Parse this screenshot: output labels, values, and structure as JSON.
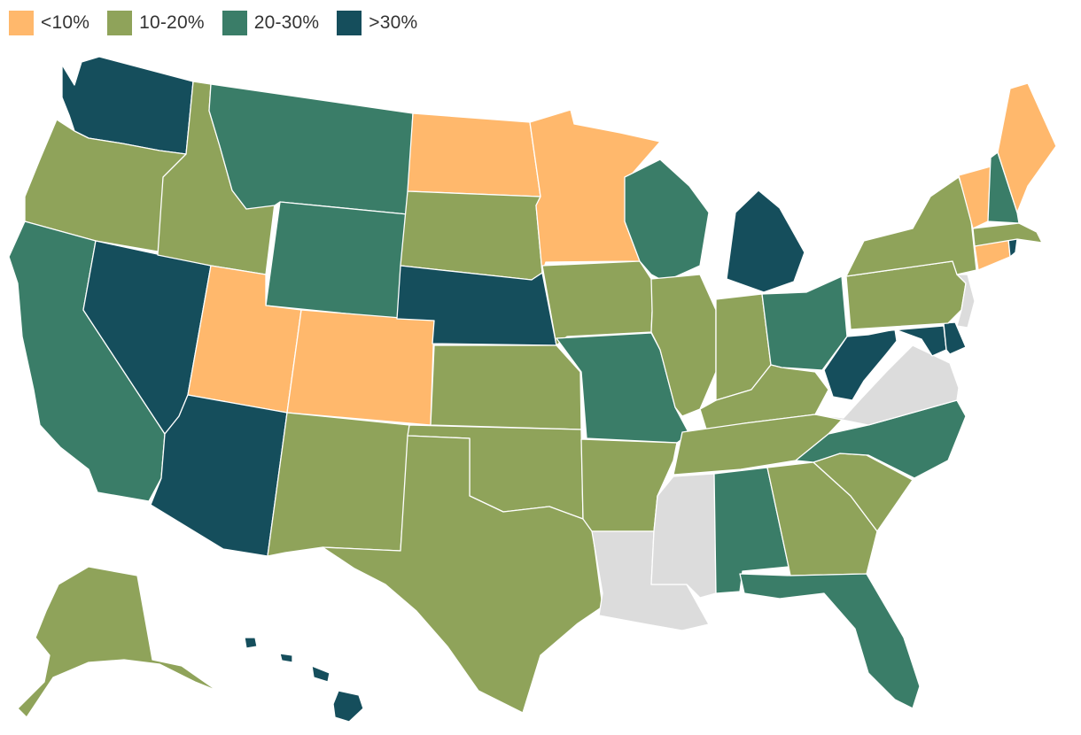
{
  "legend": {
    "items": [
      {
        "label": "<10%",
        "color": "#FFB86C"
      },
      {
        "label": "10-20%",
        "color": "#8FA35A"
      },
      {
        "label": "20-30%",
        "color": "#3A7D68"
      },
      {
        "label": ">30%",
        "color": "#154E5C"
      }
    ]
  },
  "no_data_color": "#DCDCDC",
  "states": [
    {
      "name": "WA",
      "category": ">30%"
    },
    {
      "name": "OR",
      "category": "10-20%"
    },
    {
      "name": "CA",
      "category": "20-30%"
    },
    {
      "name": "NV",
      "category": ">30%"
    },
    {
      "name": "ID",
      "category": "10-20%"
    },
    {
      "name": "MT",
      "category": "20-30%"
    },
    {
      "name": "WY",
      "category": "20-30%"
    },
    {
      "name": "UT",
      "category": "<10%"
    },
    {
      "name": "AZ",
      "category": ">30%"
    },
    {
      "name": "CO",
      "category": "<10%"
    },
    {
      "name": "NM",
      "category": "10-20%"
    },
    {
      "name": "ND",
      "category": "<10%"
    },
    {
      "name": "SD",
      "category": "10-20%"
    },
    {
      "name": "NE",
      "category": ">30%"
    },
    {
      "name": "KS",
      "category": "10-20%"
    },
    {
      "name": "OK",
      "category": "10-20%"
    },
    {
      "name": "TX",
      "category": "10-20%"
    },
    {
      "name": "MN",
      "category": "<10%"
    },
    {
      "name": "IA",
      "category": "10-20%"
    },
    {
      "name": "MO",
      "category": "20-30%"
    },
    {
      "name": "AR",
      "category": "10-20%"
    },
    {
      "name": "LA",
      "category": "no data"
    },
    {
      "name": "WI",
      "category": "20-30%"
    },
    {
      "name": "IL",
      "category": "10-20%"
    },
    {
      "name": "MI",
      "category": ">30%"
    },
    {
      "name": "IN",
      "category": "10-20%"
    },
    {
      "name": "OH",
      "category": "20-30%"
    },
    {
      "name": "KY",
      "category": "10-20%"
    },
    {
      "name": "TN",
      "category": "10-20%"
    },
    {
      "name": "MS",
      "category": "no data"
    },
    {
      "name": "AL",
      "category": "20-30%"
    },
    {
      "name": "GA",
      "category": "10-20%"
    },
    {
      "name": "FL",
      "category": "20-30%"
    },
    {
      "name": "SC",
      "category": "10-20%"
    },
    {
      "name": "NC",
      "category": "20-30%"
    },
    {
      "name": "VA",
      "category": "no data"
    },
    {
      "name": "WV",
      "category": ">30%"
    },
    {
      "name": "MD",
      "category": ">30%"
    },
    {
      "name": "DE",
      "category": ">30%"
    },
    {
      "name": "PA",
      "category": "10-20%"
    },
    {
      "name": "NJ",
      "category": "no data"
    },
    {
      "name": "NY",
      "category": "10-20%"
    },
    {
      "name": "CT",
      "category": "<10%"
    },
    {
      "name": "RI",
      "category": ">30%"
    },
    {
      "name": "MA",
      "category": "10-20%"
    },
    {
      "name": "VT",
      "category": "<10%"
    },
    {
      "name": "NH",
      "category": "20-30%"
    },
    {
      "name": "ME",
      "category": "<10%"
    },
    {
      "name": "AK",
      "category": "10-20%"
    },
    {
      "name": "HI",
      "category": ">30%"
    }
  ]
}
